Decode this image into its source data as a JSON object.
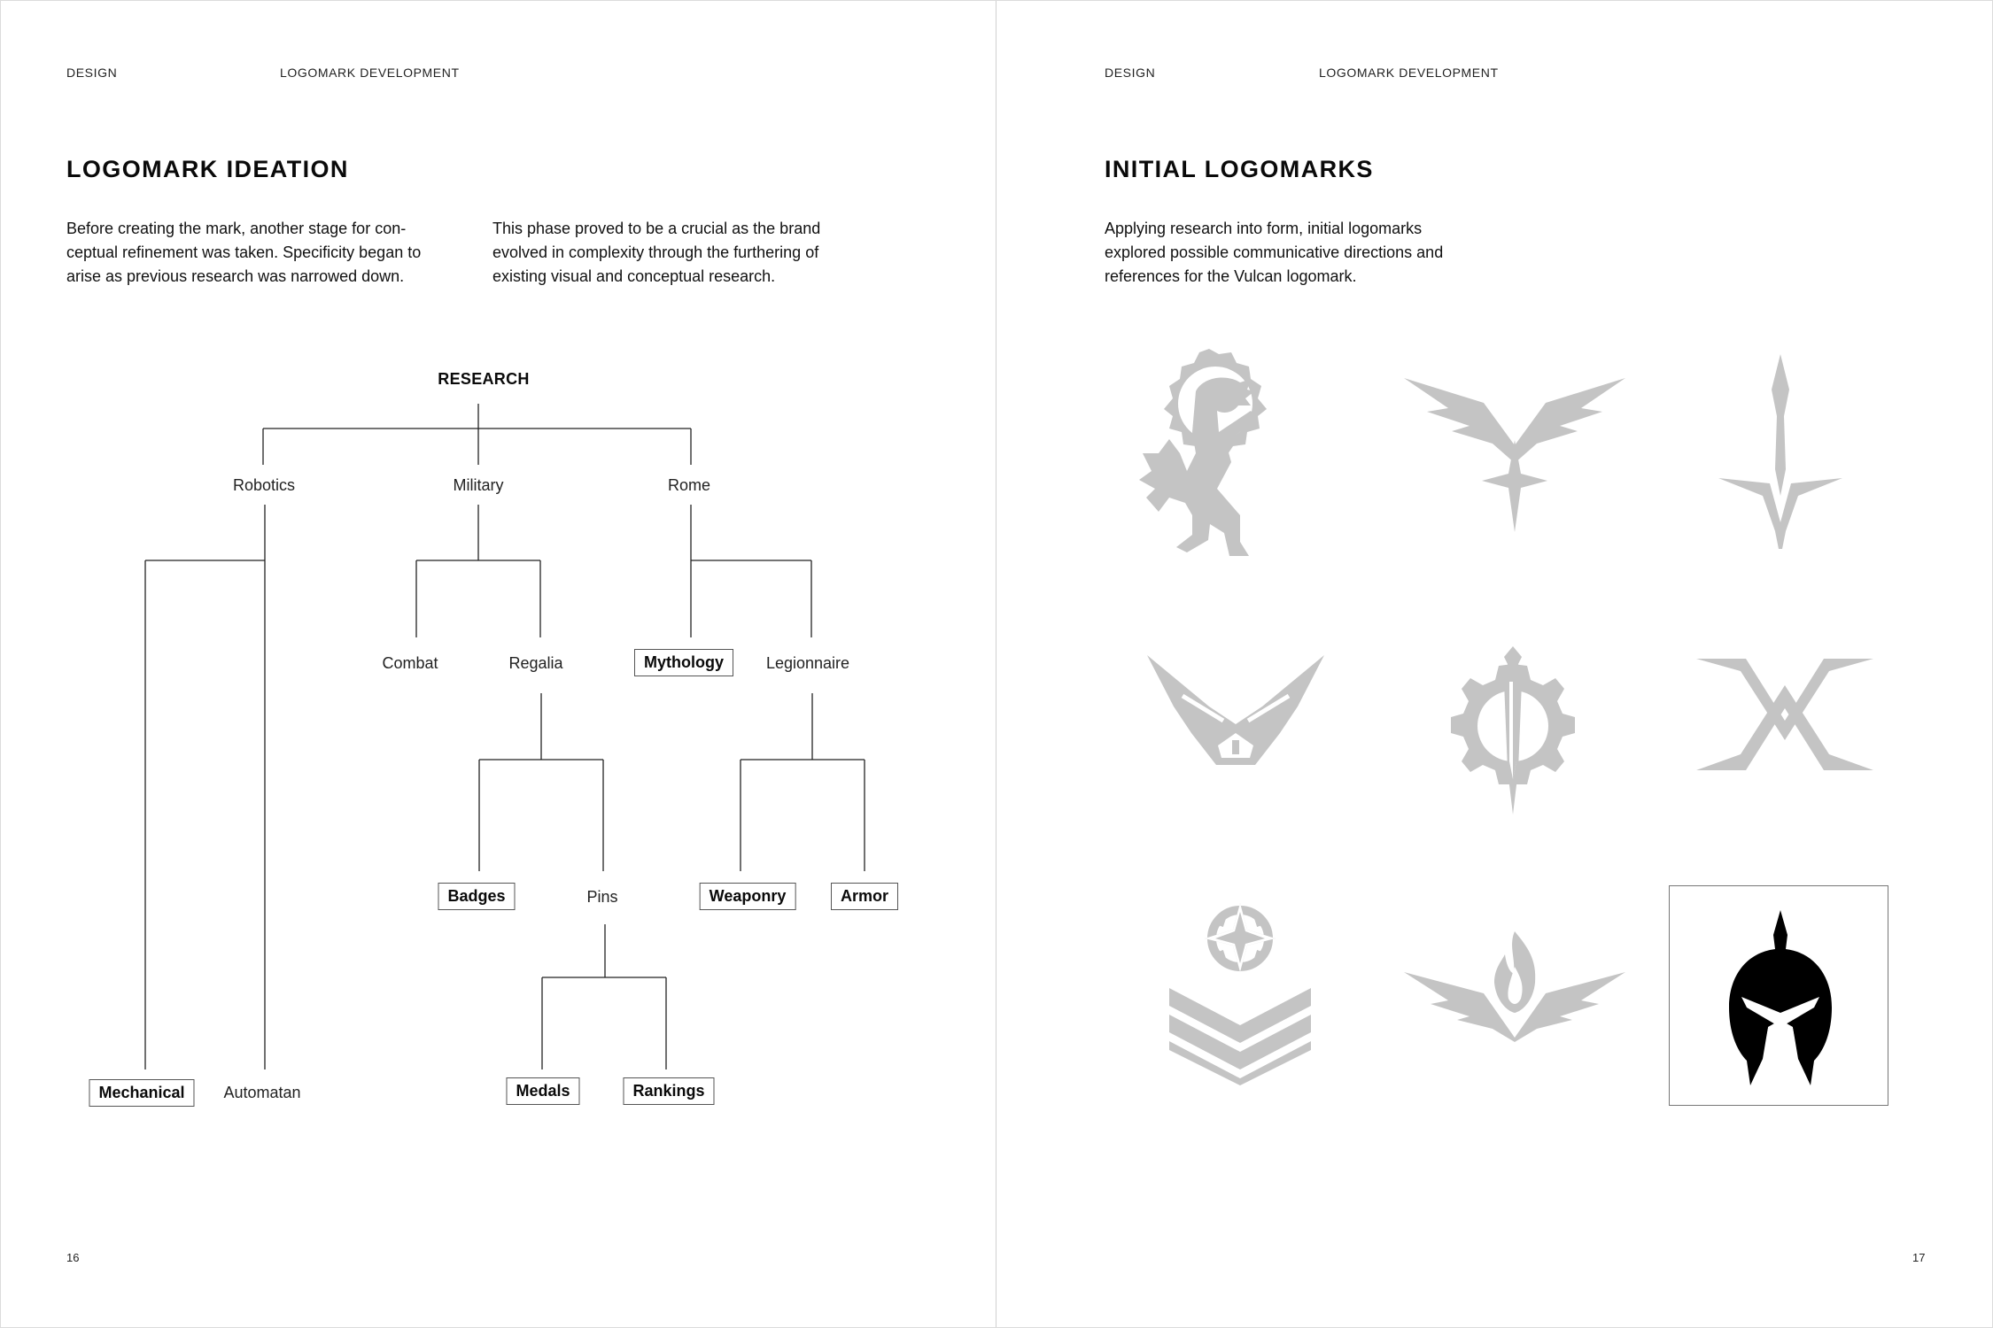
{
  "left_page": {
    "section": "DESIGN",
    "subsection": "LOGOMARK DEVELOPMENT",
    "title": "LOGOMARK IDEATION",
    "col1": "Before creating the mark, another stage for con-\nceptual refinement was taken. Specificity began to\narise as previous research was narrowed down.",
    "col2": "This phase proved to be a crucial as the brand\nevolved in complexity through the furthering of\nexisting visual and conceptual research.",
    "page_number": "16",
    "tree": {
      "root": "RESEARCH",
      "robotics": "Robotics",
      "military": "Military",
      "rome": "Rome",
      "combat": "Combat",
      "regalia": "Regalia",
      "mythology": "Mythology",
      "legionnaire": "Legionnaire",
      "badges": "Badges",
      "pins": "Pins",
      "weaponry": "Weaponry",
      "armor": "Armor",
      "medals": "Medals",
      "rankings": "Rankings",
      "mechanical": "Mechanical",
      "automatan": "Automatan"
    }
  },
  "right_page": {
    "section": "DESIGN",
    "subsection": "LOGOMARK DEVELOPMENT",
    "title": "INITIAL LOGOMARKS",
    "body": "Applying research into form, initial logomarks\nexplored possible communicative directions and\nreferences for the Vulcan logomark.",
    "page_number": "17",
    "logomarks": [
      {
        "icon": "gear-lion-icon",
        "color": "#c4c4c4"
      },
      {
        "icon": "winged-star-icon",
        "color": "#c4c4c4"
      },
      {
        "icon": "sword-wings-icon",
        "color": "#c4c4c4"
      },
      {
        "icon": "winged-shield-icon",
        "color": "#c4c4c4"
      },
      {
        "icon": "gear-dagger-icon",
        "color": "#c4c4c4"
      },
      {
        "icon": "crossed-v-icon",
        "color": "#c4c4c4"
      },
      {
        "icon": "chevron-rank-icon",
        "color": "#c4c4c4"
      },
      {
        "icon": "flame-wings-icon",
        "color": "#c4c4c4"
      },
      {
        "icon": "spartan-helmet-icon",
        "color": "#000000"
      }
    ]
  }
}
